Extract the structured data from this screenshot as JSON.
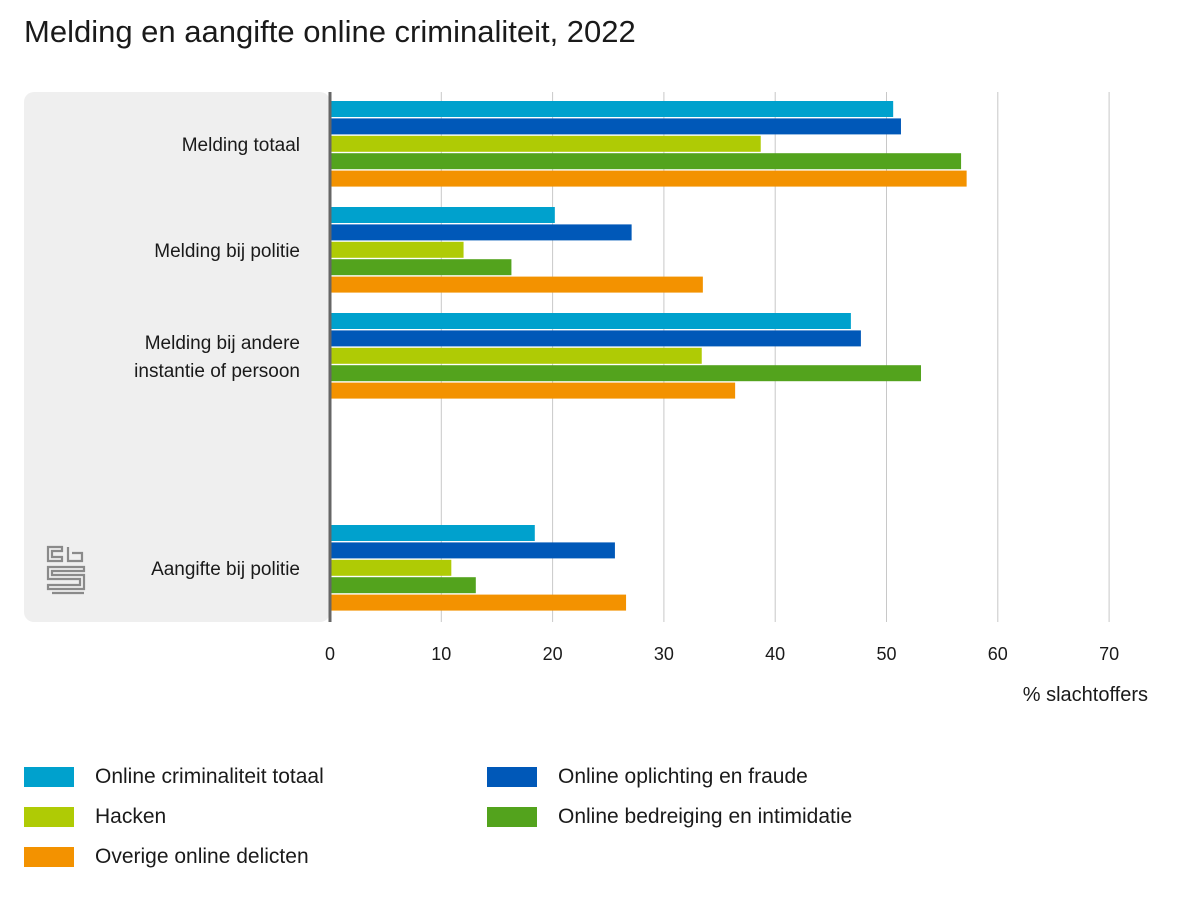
{
  "title": "Melding en aangifte online criminaliteit, 2022",
  "colors": {
    "online_totaal": "#00a1cd",
    "oplichting": "#0058b8",
    "hacken": "#afcb05",
    "bedreiging": "#53a31d",
    "overige": "#f39200",
    "panel": "#efefef",
    "grid": "#c8c8c8",
    "axis": "#666666"
  },
  "logo_icon": "cbs-logo-icon",
  "chart_data": {
    "type": "bar",
    "orientation": "horizontal",
    "title": "Melding en aangifte online criminaliteit, 2022",
    "xlabel": "% slachtoffers",
    "ylabel": "",
    "xlim": [
      0,
      70
    ],
    "xticks": [
      "0",
      "10",
      "20",
      "30",
      "40",
      "50",
      "60",
      "70"
    ],
    "grid": true,
    "legend_position": "bottom",
    "categories": [
      [
        "Melding totaal"
      ],
      [
        "Melding bij politie"
      ],
      [
        "Melding bij andere",
        "instantie of persoon"
      ],
      [
        "Aangifte bij politie"
      ]
    ],
    "series": [
      {
        "name": "Online criminaliteit totaal",
        "color": "#00a1cd",
        "values": [
          50.6,
          20.2,
          46.8,
          18.4
        ]
      },
      {
        "name": "Online oplichting en fraude",
        "color": "#0058b8",
        "values": [
          51.3,
          27.1,
          47.7,
          25.6
        ]
      },
      {
        "name": "Hacken",
        "color": "#afcb05",
        "values": [
          38.7,
          12.0,
          33.4,
          10.9
        ]
      },
      {
        "name": "Online bedreiging en intimidatie",
        "color": "#53a31d",
        "values": [
          56.7,
          16.3,
          53.1,
          13.1
        ]
      },
      {
        "name": "Overige online delicten",
        "color": "#f39200",
        "values": [
          57.2,
          33.5,
          36.4,
          26.6
        ]
      }
    ]
  },
  "legend": [
    {
      "label": "Online criminaliteit totaal",
      "color": "#00a1cd"
    },
    {
      "label": "Online oplichting en fraude",
      "color": "#0058b8"
    },
    {
      "label": "Hacken",
      "color": "#afcb05"
    },
    {
      "label": "Online bedreiging en intimidatie",
      "color": "#53a31d"
    },
    {
      "label": "Overige online delicten",
      "color": "#f39200"
    }
  ]
}
